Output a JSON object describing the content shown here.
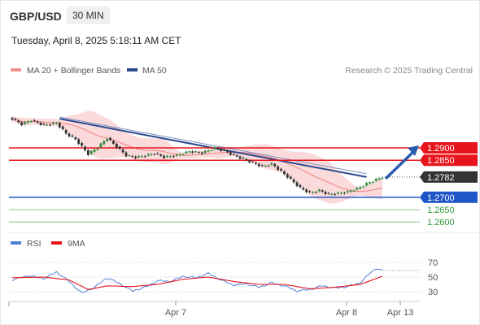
{
  "header": {
    "symbol": "GBP/USD",
    "timeframe": "30 MIN",
    "datetime": "Tuesday, April 8, 2025 5:18:11 AM CET"
  },
  "legend": {
    "bollinger": "MA 20 + Bollinger Bands",
    "ma50": "MA 50",
    "credit": "Research © 2025 Trading Central",
    "rsi": "RSI",
    "rsi_ma": "9MA"
  },
  "colors": {
    "resistance": "#e8141c",
    "support": "#1e56c7",
    "target": "#2e9a3a",
    "ma50": "#2b4a8c",
    "bollinger": "#f5b5b5",
    "rsi": "#4f7fd8",
    "rsi_ma": "#e8141c",
    "bull_candle": "#2e8b3e",
    "bear_candle": "#333333",
    "arrow": "#2a5bb0"
  },
  "chart_data": [
    {
      "type": "candlestick",
      "price_levels": [
        {
          "label": "1.2900",
          "value": 1.29,
          "kind": "resistance"
        },
        {
          "label": "1.2850",
          "value": 1.285,
          "kind": "resistance"
        },
        {
          "label": "1.2782",
          "value": 1.2782,
          "kind": "last"
        },
        {
          "label": "1.2700",
          "value": 1.27,
          "kind": "pivot"
        },
        {
          "label": "1.2650",
          "value": 1.265,
          "kind": "support"
        },
        {
          "label": "1.2600",
          "value": 1.26,
          "kind": "support"
        }
      ],
      "x_tick_labels": [
        "Apr 7",
        "Apr 8",
        "Apr 13"
      ],
      "close_series_keypoints": [
        [
          0,
          1.3018
        ],
        [
          3,
          1.2996
        ],
        [
          6,
          1.3012
        ],
        [
          10,
          1.2992
        ],
        [
          14,
          1.3001
        ],
        [
          17,
          1.2958
        ],
        [
          20,
          1.2935
        ],
        [
          24,
          1.2875
        ],
        [
          27,
          1.2902
        ],
        [
          30,
          1.294
        ],
        [
          33,
          1.2905
        ],
        [
          36,
          1.287
        ],
        [
          39,
          1.2862
        ],
        [
          42,
          1.2869
        ],
        [
          45,
          1.2878
        ],
        [
          48,
          1.2863
        ],
        [
          52,
          1.287
        ],
        [
          56,
          1.2886
        ],
        [
          60,
          1.288
        ],
        [
          64,
          1.29
        ],
        [
          67,
          1.2888
        ],
        [
          70,
          1.287
        ],
        [
          73,
          1.2855
        ],
        [
          76,
          1.284
        ],
        [
          79,
          1.2825
        ],
        [
          82,
          1.2835
        ],
        [
          85,
          1.2805
        ],
        [
          88,
          1.2772
        ],
        [
          91,
          1.2738
        ],
        [
          94,
          1.2718
        ],
        [
          97,
          1.2728
        ],
        [
          100,
          1.2712
        ],
        [
          103,
          1.2716
        ],
        [
          106,
          1.2722
        ],
        [
          109,
          1.2735
        ],
        [
          112,
          1.2755
        ],
        [
          115,
          1.2772
        ],
        [
          117,
          1.2782
        ]
      ],
      "ma50_line": {
        "from": [
          15,
          1.3018
        ],
        "to": [
          112,
          1.2782
        ]
      },
      "forecast_arrow": {
        "from": 1.2782,
        "to": 1.29
      }
    },
    {
      "type": "line",
      "name": "RSI",
      "y_tick_labels": [
        "70",
        "50",
        "30"
      ],
      "ylim": [
        20,
        80
      ],
      "rsi_keypoints": [
        [
          0,
          46
        ],
        [
          5,
          52
        ],
        [
          10,
          48
        ],
        [
          14,
          57
        ],
        [
          18,
          44
        ],
        [
          22,
          28
        ],
        [
          26,
          36
        ],
        [
          30,
          49
        ],
        [
          34,
          41
        ],
        [
          38,
          31
        ],
        [
          42,
          36
        ],
        [
          46,
          45
        ],
        [
          50,
          44
        ],
        [
          54,
          51
        ],
        [
          58,
          49
        ],
        [
          62,
          55
        ],
        [
          66,
          46
        ],
        [
          70,
          39
        ],
        [
          74,
          41
        ],
        [
          78,
          36
        ],
        [
          82,
          42
        ],
        [
          86,
          38
        ],
        [
          90,
          31
        ],
        [
          94,
          33
        ],
        [
          98,
          38
        ],
        [
          102,
          35
        ],
        [
          106,
          37
        ],
        [
          110,
          42
        ],
        [
          113,
          55
        ],
        [
          115,
          62
        ],
        [
          117,
          59
        ]
      ],
      "rsi_ma_keypoints": [
        [
          0,
          49
        ],
        [
          10,
          50
        ],
        [
          18,
          46
        ],
        [
          24,
          33
        ],
        [
          30,
          38
        ],
        [
          38,
          37
        ],
        [
          46,
          40
        ],
        [
          54,
          47
        ],
        [
          62,
          50
        ],
        [
          70,
          44
        ],
        [
          78,
          40
        ],
        [
          86,
          40
        ],
        [
          94,
          34
        ],
        [
          102,
          36
        ],
        [
          110,
          40
        ],
        [
          117,
          51
        ]
      ]
    }
  ]
}
